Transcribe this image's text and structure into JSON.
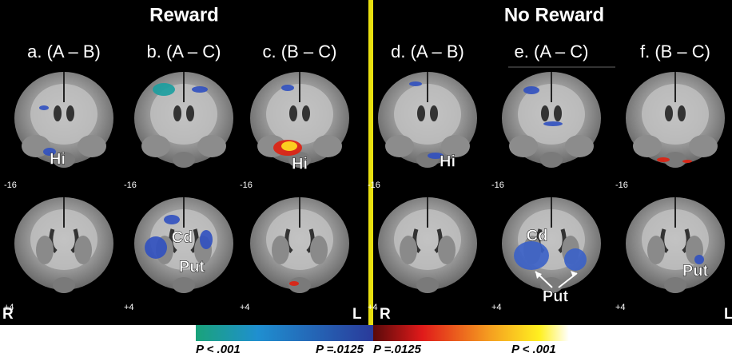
{
  "groups": [
    {
      "title": "Reward",
      "side_left": "R",
      "side_right": "L",
      "panels": [
        {
          "label": "a. (A – B)",
          "top_slice": "-16",
          "bottom_slice": "+4",
          "regions": [
            "Hi"
          ]
        },
        {
          "label": "b. (A – C)",
          "top_slice": "-16",
          "bottom_slice": "+4",
          "regions": [
            "Cd",
            "Put"
          ]
        },
        {
          "label": "c. (B – C)",
          "top_slice": "-16",
          "bottom_slice": "+4",
          "regions": [
            "Hi"
          ]
        }
      ]
    },
    {
      "title": "No Reward",
      "side_left": "R",
      "side_right": "L",
      "panels": [
        {
          "label": "d. (A – B)",
          "top_slice": "-16",
          "bottom_slice": "+4",
          "regions": [
            "Hi"
          ]
        },
        {
          "label": "e. (A – C)",
          "top_slice": "-16",
          "bottom_slice": "+4",
          "regions": [
            "Cd",
            "Put"
          ]
        },
        {
          "label": "f. (B – C)",
          "top_slice": "-16",
          "bottom_slice": "+4",
          "regions": [
            "Put"
          ]
        }
      ]
    }
  ],
  "colorbar": {
    "labels": [
      "P < .001",
      "P =.0125",
      "P =.0125",
      "P < .001"
    ]
  }
}
